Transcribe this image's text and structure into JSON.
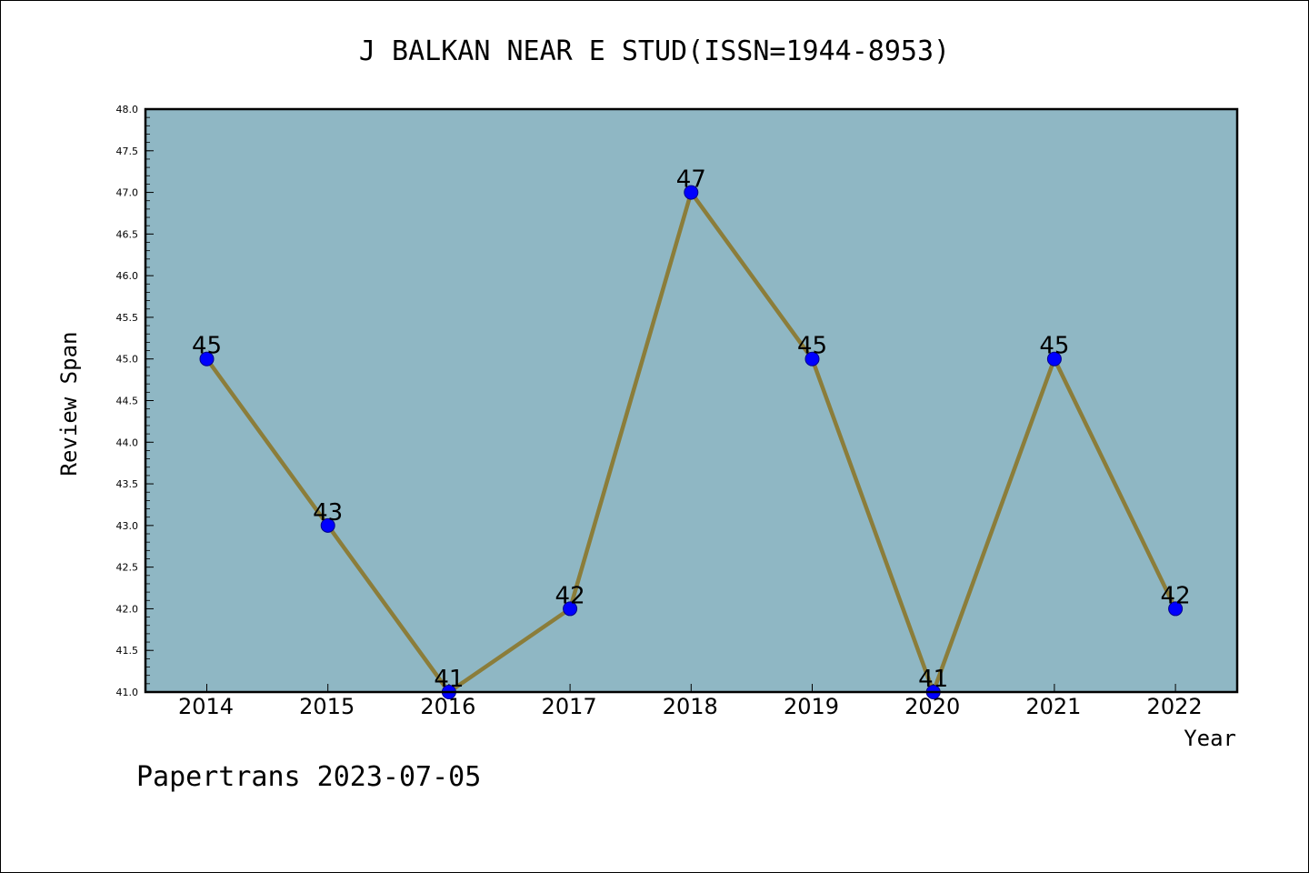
{
  "chart_data": {
    "type": "line",
    "title": "J BALKAN NEAR E STUD(ISSN=1944-8953)",
    "xlabel": "Year",
    "ylabel": "Review Span",
    "categories": [
      "2014",
      "2015",
      "2016",
      "2017",
      "2018",
      "2019",
      "2020",
      "2021",
      "2022"
    ],
    "series": [
      {
        "values": [
          45,
          43,
          41,
          42,
          47,
          45,
          41,
          45,
          42
        ],
        "data_labels": [
          "45",
          "43",
          "41",
          "42",
          "47",
          "45",
          "41",
          "45",
          "42"
        ]
      }
    ],
    "ylim": [
      41.0,
      48.0
    ],
    "y_ticks": [
      "41.0",
      "41.5",
      "42.0",
      "42.5",
      "43.0",
      "43.5",
      "44.0",
      "44.5",
      "45.0",
      "45.5",
      "46.0",
      "46.5",
      "47.0",
      "47.5",
      "48.0"
    ],
    "grid": false,
    "legend": "none",
    "colors": {
      "plot_background": "#8fb7c4",
      "line": "#8b7d3a",
      "marker": "#0000ff"
    }
  },
  "footer": "Papertrans 2023-07-05"
}
